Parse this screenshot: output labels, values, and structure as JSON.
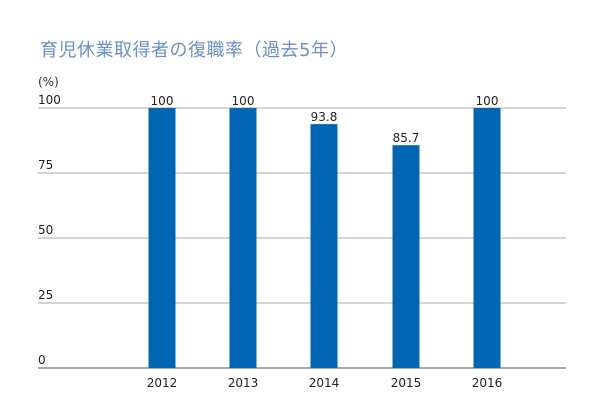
{
  "chart_data": {
    "type": "bar",
    "title": "育児休業取得者の復職率（過去5年）",
    "unit_label": "(%)",
    "categories": [
      "2012",
      "2013",
      "2014",
      "2015",
      "2016"
    ],
    "values": [
      100,
      100,
      93.8,
      85.7,
      100
    ],
    "value_labels": [
      "100",
      "100",
      "93.8",
      "85.7",
      "100"
    ],
    "yticks": [
      "100",
      "75",
      "50",
      "25",
      "0"
    ],
    "ylim": [
      0,
      100
    ],
    "grid": true,
    "bar_color": "#0066b3",
    "grid_color": "#a8a8a8",
    "title_color": "#6b8fc7"
  }
}
